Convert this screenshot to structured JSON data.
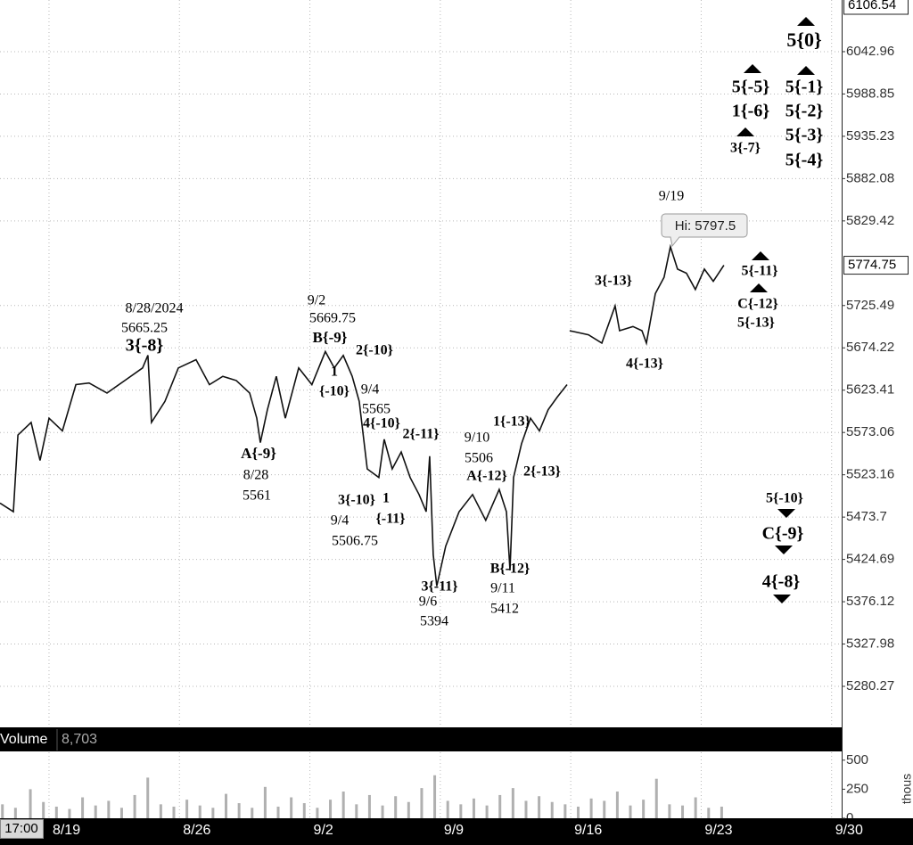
{
  "chart_data": [
    {
      "type": "line",
      "color": "#111111",
      "log_scale": true,
      "grid": true,
      "xlim": [
        -2.63,
        42.54
      ],
      "ylim": [
        5242.4,
        6109.7
      ],
      "xticks": [
        {
          "value": 0,
          "label": "8/19"
        },
        {
          "value": 7,
          "label": "8/26"
        },
        {
          "value": 14,
          "label": "9/2"
        },
        {
          "value": 21,
          "label": "9/9"
        },
        {
          "value": 28,
          "label": "9/16"
        },
        {
          "value": 35,
          "label": "9/23"
        },
        {
          "value": 42,
          "label": "9/30"
        }
      ],
      "yticks": [
        6042.96,
        5988.85,
        5935.23,
        5882.08,
        5829.42,
        5725.49,
        5674.22,
        5623.41,
        5573.06,
        5523.16,
        5473.7,
        5424.69,
        5376.12,
        5327.98,
        5280.27
      ],
      "top_label": 6106.54,
      "last_price": 5774.75,
      "high_label": "Hi: 5797.5",
      "session_label": "17:00",
      "x": [
        -2.63,
        -1.91,
        -1.67,
        -0.96,
        -0.48,
        0,
        0.72,
        1.44,
        2.15,
        3.11,
        4.07,
        5.02,
        5.31,
        5.5,
        6.22,
        6.94,
        7.89,
        8.61,
        9.33,
        10.05,
        10.77,
        11.15,
        11.34,
        11.72,
        12.2,
        12.68,
        13.4,
        14.11,
        14.83,
        15.31,
        15.79,
        16.27,
        16.65,
        17.08,
        17.7,
        17.99,
        18.42,
        18.9,
        19.38,
        19.86,
        20.24,
        20.43,
        20.62,
        20.81,
        21.29,
        22.01,
        22.73,
        23.44,
        24.16,
        24.55,
        24.74,
        24.93,
        25.36,
        25.84,
        26.32,
        26.79,
        27.27,
        27.8,
        null,
        27.94,
        28.95,
        29.67,
        30.38,
        30.62,
        31.34,
        31.82,
        32.06,
        32.54,
        33.01,
        33.35,
        33.73,
        34.21,
        34.69,
        35.17,
        35.65,
        36.22
      ],
      "values": [
        5490,
        5480,
        5570,
        5585,
        5540,
        5590,
        5575,
        5630,
        5632,
        5620,
        5635,
        5650,
        5665.25,
        5585,
        5610,
        5650,
        5660,
        5630,
        5640,
        5635,
        5620,
        5590,
        5561,
        5600,
        5640,
        5590,
        5650,
        5630,
        5669.75,
        5650,
        5665,
        5640,
        5610,
        5530,
        5520,
        5565,
        5530,
        5550,
        5520,
        5500,
        5480,
        5545,
        5430,
        5394,
        5440,
        5480,
        5500,
        5470,
        5506,
        5480,
        5412,
        5520,
        5560,
        5590,
        5575,
        5600,
        5615,
        5630,
        null,
        5695,
        5690,
        5680,
        5725,
        5695,
        5700,
        5695,
        5680,
        5740,
        5760,
        5797.5,
        5770,
        5765,
        5745,
        5770,
        5755,
        5774.75
      ],
      "annotations": [
        "8/28/2024",
        "5665.25",
        "3{-8}",
        "A{-9}",
        "8/28",
        "5561",
        "9/2",
        "5669.75",
        "B{-9}",
        "2{-10}",
        "1",
        "{-10}",
        "9/4",
        "5565",
        "4{-10}",
        "2{-11}",
        "9/10",
        "5506",
        "A{-12}",
        "1{-13}",
        "2{-13}",
        "3{-10}",
        "1",
        "{-11}",
        "9/4",
        "5506.75",
        "3{-11}",
        "9/6",
        "5394",
        "B{-12}",
        "9/11",
        "5412",
        "3{-13}",
        "4{-13}",
        "9/19",
        "5{-11}",
        "C{-12}",
        "5{-13}",
        "5{-5}",
        "1{-6}",
        "3{-7}",
        "5{0}",
        "5{-1}",
        "5{-2}",
        "5{-3}",
        "5{-4}",
        "5{-10}",
        "C{-9}",
        "4{-8}"
      ]
    },
    {
      "type": "bar",
      "title": "Volume",
      "readout": "8,703",
      "ylabel": "thous",
      "color": "#b0b0b0",
      "xlim": [
        -2.63,
        42.54
      ],
      "ylim": [
        0,
        560
      ],
      "yticks": [
        0,
        250,
        500
      ],
      "x": [
        -2.5,
        -1.8,
        -1.0,
        -0.3,
        0.4,
        1.1,
        1.8,
        2.5,
        3.2,
        3.9,
        4.6,
        5.3,
        6.0,
        6.7,
        7.4,
        8.1,
        8.8,
        9.5,
        10.2,
        10.9,
        11.6,
        12.3,
        13.0,
        13.7,
        14.4,
        15.1,
        15.8,
        16.5,
        17.2,
        17.9,
        18.6,
        19.3,
        20.0,
        20.7,
        21.4,
        22.1,
        22.8,
        23.5,
        24.2,
        24.9,
        25.6,
        26.3,
        27.0,
        27.7,
        28.4,
        29.1,
        29.8,
        30.5,
        31.2,
        31.9,
        32.6,
        33.3,
        34.0,
        34.7,
        35.4,
        36.1
      ],
      "values": [
        120,
        90,
        250,
        140,
        100,
        80,
        180,
        110,
        150,
        90,
        200,
        350,
        120,
        100,
        160,
        110,
        90,
        210,
        130,
        90,
        270,
        100,
        180,
        130,
        90,
        160,
        230,
        120,
        200,
        110,
        190,
        140,
        260,
        370,
        150,
        120,
        170,
        110,
        200,
        260,
        150,
        190,
        140,
        120,
        100,
        170,
        150,
        230,
        110,
        160,
        340,
        120,
        110,
        180,
        90,
        100
      ]
    }
  ]
}
